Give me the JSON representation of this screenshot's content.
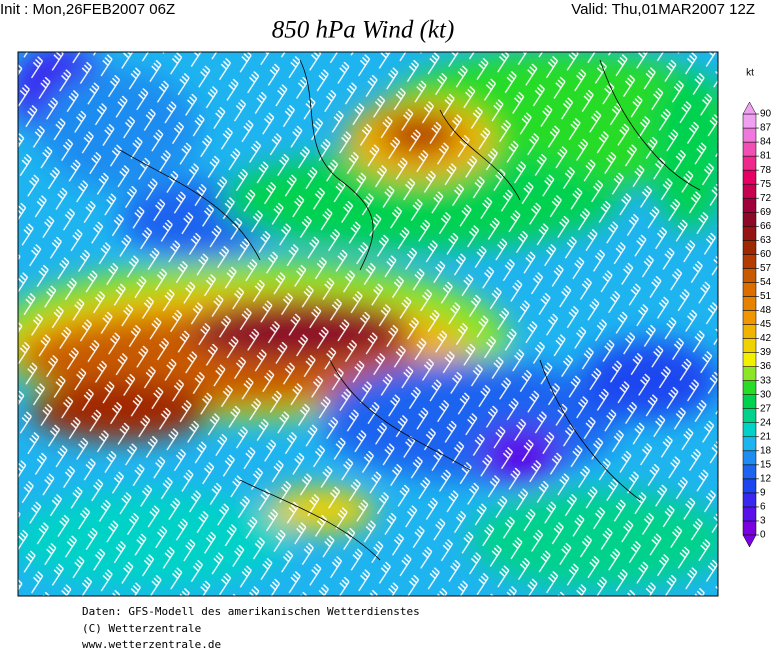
{
  "header": {
    "init": "Init : Mon,26FEB2007 06Z",
    "valid": "Valid: Thu,01MAR2007 12Z",
    "title": "850 hPa Wind (kt)"
  },
  "colorbar": {
    "unit": "kt",
    "levels": [
      0,
      3,
      6,
      9,
      12,
      15,
      18,
      21,
      24,
      27,
      30,
      33,
      36,
      39,
      42,
      45,
      48,
      51,
      54,
      57,
      60,
      63,
      66,
      69,
      72,
      75,
      78,
      81,
      84,
      87,
      90
    ],
    "colors": [
      "#7a00e0",
      "#5a10ea",
      "#3a28f0",
      "#1e46f0",
      "#1e64f0",
      "#1e8cf0",
      "#1eb4f0",
      "#00d2c8",
      "#00d28c",
      "#00d250",
      "#28dc28",
      "#8ce628",
      "#f0f000",
      "#f0d200",
      "#f0b400",
      "#f09600",
      "#e68200",
      "#dc6e00",
      "#c85a00",
      "#b43c00",
      "#a02800",
      "#961414",
      "#8c0a28",
      "#a0003c",
      "#c80050",
      "#e60064",
      "#f0288c",
      "#f050b4",
      "#f078dc",
      "#f0a0f0"
    ]
  },
  "footer": {
    "lines": [
      "Daten: GFS-Modell des amerikanischen Wetterdienstes",
      "(C) Wetterzentrale",
      "www.wetterzentrale.de"
    ]
  }
}
